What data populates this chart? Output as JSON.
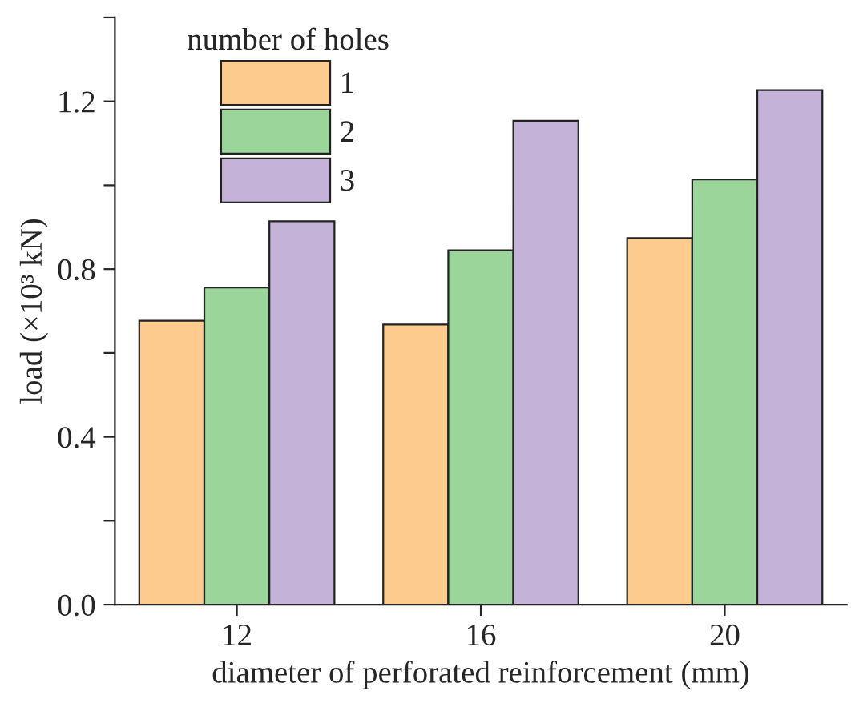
{
  "chart_data": {
    "type": "bar",
    "xlabel": "diameter of perforated reinforcement (mm)",
    "ylabel": "load (×10³ kN)",
    "legend_title": "number of holes",
    "categories": [
      "12",
      "16",
      "20"
    ],
    "series": [
      {
        "name": "1",
        "color": "#fdcb8d",
        "values": [
          0.677,
          0.668,
          0.874
        ]
      },
      {
        "name": "2",
        "color": "#9bd59a",
        "values": [
          0.756,
          0.845,
          1.014
        ]
      },
      {
        "name": "3",
        "color": "#c5b2d8",
        "values": [
          0.914,
          1.154,
          1.227
        ]
      }
    ],
    "ylim": [
      0,
      1.4
    ],
    "yticks": [
      {
        "value": 0,
        "label": "0.0"
      },
      {
        "value": 0.2,
        "label": null
      },
      0.4,
      {
        "value": 0.6,
        "label": null
      },
      0.8,
      {
        "value": 1.0,
        "label": null
      },
      1.2,
      {
        "value": 1.4,
        "label": null
      }
    ],
    "grid": false,
    "legend": "top left"
  }
}
